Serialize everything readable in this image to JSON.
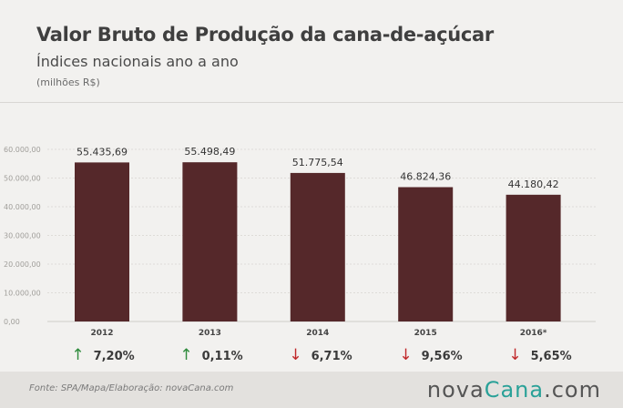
{
  "header": {
    "title": "Valor Bruto de Produção da cana-de-açúcar",
    "subtitle": "Índices nacionais ano a ano",
    "unit": "(milhões R$)"
  },
  "colors": {
    "bar": "#55282a",
    "up": "#2e8b3c",
    "down": "#c0282a",
    "accent": "#2aa198"
  },
  "chart_data": {
    "type": "bar",
    "categories": [
      "2012",
      "2013",
      "2014",
      "2015",
      "2016*"
    ],
    "values": [
      55435.69,
      55498.49,
      51775.54,
      46824.36,
      44180.42
    ],
    "data_labels": [
      "55.435,69",
      "55.498,49",
      "51.775,54",
      "46.824,36",
      "44.180,42"
    ],
    "y_ticks": [
      0,
      10000,
      20000,
      30000,
      40000,
      50000,
      60000
    ],
    "y_tick_labels": [
      "0,00",
      "10.000,00",
      "20.000,00",
      "30.000,00",
      "40.000,00",
      "50.000,00",
      "60.000,00"
    ],
    "ylim": [
      0,
      60000
    ],
    "grid": true
  },
  "changes": [
    {
      "direction": "up",
      "arrow": "↑",
      "value": "7,20%"
    },
    {
      "direction": "up",
      "arrow": "↑",
      "value": "0,11%"
    },
    {
      "direction": "down",
      "arrow": "↓",
      "value": "6,71%"
    },
    {
      "direction": "down",
      "arrow": "↓",
      "value": "9,56%"
    },
    {
      "direction": "down",
      "arrow": "↓",
      "value": "5,65%"
    }
  ],
  "footer": {
    "source": "Fonte: SPA/Mapa/Elaboração: novaCana.com",
    "logo_main": "nova",
    "logo_brand": "Cana",
    "logo_suffix": ".com"
  }
}
